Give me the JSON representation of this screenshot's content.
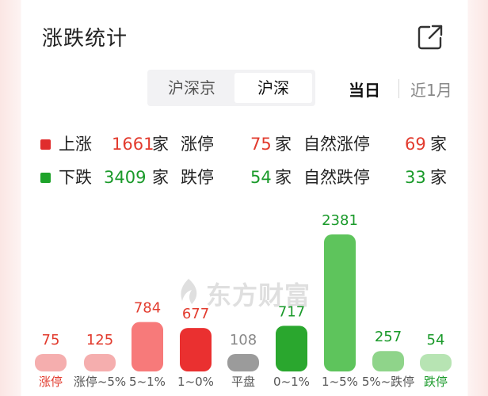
{
  "header": {
    "title": "涨跌统计",
    "share_icon": "share-external-icon"
  },
  "segment": {
    "options": [
      "沪深京",
      "沪深"
    ],
    "selected": "沪深"
  },
  "period": {
    "options": [
      "当日",
      "近1月"
    ],
    "selected": "当日"
  },
  "stats": {
    "rise": {
      "label": "上涨",
      "count": "1661",
      "unit": "家"
    },
    "limit_up": {
      "label": "涨停",
      "count": "75",
      "unit": "家"
    },
    "natural_limit_up": {
      "label": "自然涨停",
      "count": "69",
      "unit": "家"
    },
    "fall": {
      "label": "下跌",
      "count": "3409",
      "unit": "家"
    },
    "limit_down": {
      "label": "跌停",
      "count": "54",
      "unit": "家"
    },
    "natural_limit_down": {
      "label": "自然跌停",
      "count": "33",
      "unit": "家"
    }
  },
  "colors": {
    "rise": "#e23b2e",
    "fall": "#1a9a2a"
  },
  "watermark": {
    "text": "东方财富",
    "icon": "eastmoney-logo-icon"
  },
  "chart_data": {
    "type": "bar",
    "categories": [
      "涨停",
      "涨停~5%",
      "5~1%",
      "1~0%",
      "平盘",
      "0~1%",
      "1~5%",
      "5%~跌停",
      "跌停"
    ],
    "values": [
      75,
      125,
      784,
      677,
      108,
      717,
      2381,
      257,
      54
    ],
    "bar_colors": [
      "#f5aeae",
      "#f5aeae",
      "#f77a7a",
      "#ea3030",
      "#9b9b9b",
      "#2aa72e",
      "#5ec45c",
      "#8fd48a",
      "#b7e4b3"
    ],
    "label_colors": [
      "#e23b2e",
      "#e23b2e",
      "#e23b2e",
      "#e23b2e",
      "#888888",
      "#1a9a2a",
      "#1a9a2a",
      "#1a9a2a",
      "#1a9a2a"
    ],
    "category_colors": [
      "#e23b2e",
      "#555555",
      "#555555",
      "#555555",
      "#555555",
      "#555555",
      "#555555",
      "#555555",
      "#1a9a2a"
    ],
    "title": "",
    "xlabel": "",
    "ylabel": "",
    "grid": false
  }
}
